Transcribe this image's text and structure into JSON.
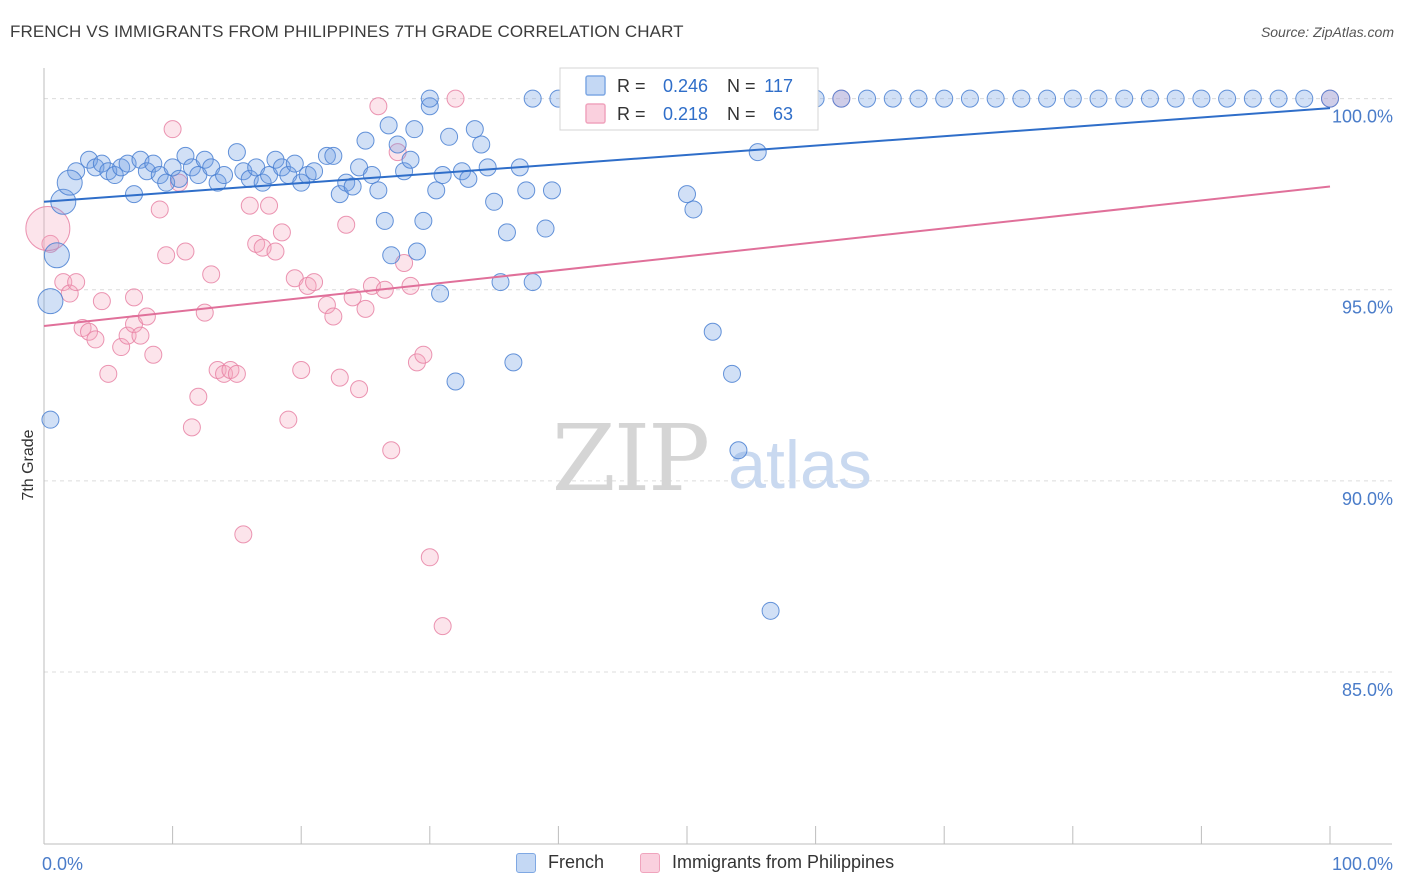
{
  "header": {
    "title": "FRENCH VS IMMIGRANTS FROM PHILIPPINES 7TH GRADE CORRELATION CHART",
    "source": "Source: ZipAtlas.com"
  },
  "watermark": {
    "zip": "ZIP",
    "atlas": "atlas"
  },
  "chart_data": {
    "type": "scatter",
    "title": "FRENCH VS IMMIGRANTS FROM PHILIPPINES 7TH GRADE CORRELATION CHART",
    "xlabel": "",
    "ylabel": "7th Grade",
    "xlim": [
      0,
      100
    ],
    "ylim": [
      80.5,
      100.8
    ],
    "x_tick_labels": [
      {
        "value": 0,
        "label": "0.0%"
      },
      {
        "value": 100,
        "label": "100.0%"
      }
    ],
    "y_ticks": [
      {
        "value": 100,
        "label": "100.0%"
      },
      {
        "value": 95,
        "label": "95.0%"
      },
      {
        "value": 90,
        "label": "90.0%"
      },
      {
        "value": 85,
        "label": "85.0%"
      }
    ],
    "grid": true,
    "legend_position": "top-center",
    "colors": {
      "french": "#6f9fe3",
      "french_line": "#2f6ec9",
      "philippines": "#f4a6bd",
      "philippines_line": "#e0709a",
      "stat_value": "#2f6ec9"
    },
    "legend": [
      {
        "series": "French",
        "r_label": "R =",
        "r_value": "0.246",
        "n_label": "N =",
        "n_value": "117"
      },
      {
        "series": "Immigrants from Philippines",
        "r_label": "R =",
        "r_value": "0.218",
        "n_label": "N =",
        "n_value": "63"
      }
    ],
    "series": [
      {
        "name": "French",
        "trend": [
          [
            0,
            97.3
          ],
          [
            100,
            99.75
          ]
        ],
        "points": [
          [
            2.5,
            98.1
          ],
          [
            3.5,
            98.4
          ],
          [
            4,
            98.2
          ],
          [
            4.5,
            98.3
          ],
          [
            5,
            98.1
          ],
          [
            5.5,
            98.0
          ],
          [
            6,
            98.2
          ],
          [
            6.5,
            98.3
          ],
          [
            7,
            97.5
          ],
          [
            7.5,
            98.4
          ],
          [
            8,
            98.1
          ],
          [
            8.5,
            98.3
          ],
          [
            9,
            98.0
          ],
          [
            9.5,
            97.8
          ],
          [
            10,
            98.2
          ],
          [
            10.5,
            97.9
          ],
          [
            11,
            98.5
          ],
          [
            11.5,
            98.2
          ],
          [
            12,
            98.0
          ],
          [
            12.5,
            98.4
          ],
          [
            13,
            98.2
          ],
          [
            13.5,
            97.8
          ],
          [
            14,
            98.0
          ],
          [
            15,
            98.6
          ],
          [
            15.5,
            98.1
          ],
          [
            16,
            97.9
          ],
          [
            16.5,
            98.2
          ],
          [
            17,
            97.8
          ],
          [
            17.5,
            98.0
          ],
          [
            18,
            98.4
          ],
          [
            18.5,
            98.2
          ],
          [
            19,
            98.0
          ],
          [
            19.5,
            98.3
          ],
          [
            20,
            97.8
          ],
          [
            20.5,
            98.0
          ],
          [
            21,
            98.1
          ],
          [
            22,
            98.5
          ],
          [
            22.5,
            98.5
          ],
          [
            23,
            97.5
          ],
          [
            23.5,
            97.8
          ],
          [
            24,
            97.7
          ],
          [
            24.5,
            98.2
          ],
          [
            25,
            98.9
          ],
          [
            25.5,
            98.0
          ],
          [
            26,
            97.6
          ],
          [
            26.5,
            96.8
          ],
          [
            27,
            95.9
          ],
          [
            26.8,
            99.3
          ],
          [
            27.5,
            98.8
          ],
          [
            28,
            98.1
          ],
          [
            28.5,
            98.4
          ],
          [
            28.8,
            99.2
          ],
          [
            29,
            96.0
          ],
          [
            29.5,
            96.8
          ],
          [
            30,
            99.8
          ],
          [
            30.5,
            97.6
          ],
          [
            30.8,
            94.9
          ],
          [
            31,
            98.0
          ],
          [
            31.5,
            99.0
          ],
          [
            32,
            92.6
          ],
          [
            32.5,
            98.1
          ],
          [
            33,
            97.9
          ],
          [
            33.5,
            99.2
          ],
          [
            34,
            98.8
          ],
          [
            34.5,
            98.2
          ],
          [
            35,
            97.3
          ],
          [
            35.5,
            95.2
          ],
          [
            36,
            96.5
          ],
          [
            37,
            98.2
          ],
          [
            36.5,
            93.1
          ],
          [
            37.5,
            97.6
          ],
          [
            38,
            95.2
          ],
          [
            39,
            96.6
          ],
          [
            39.5,
            97.6
          ],
          [
            50,
            97.5
          ],
          [
            50.5,
            97.1
          ],
          [
            52,
            93.9
          ],
          [
            53.5,
            92.8
          ],
          [
            56.5,
            86.6
          ],
          [
            54,
            90.8
          ],
          [
            55.5,
            98.6
          ],
          [
            30,
            100
          ],
          [
            38,
            100
          ],
          [
            40,
            100
          ],
          [
            42,
            100
          ],
          [
            44,
            100
          ],
          [
            46,
            100
          ],
          [
            48,
            100
          ],
          [
            50,
            100
          ],
          [
            52,
            100
          ],
          [
            54,
            100
          ],
          [
            56,
            100
          ],
          [
            58,
            100
          ],
          [
            60,
            100
          ],
          [
            62,
            100
          ],
          [
            64,
            100
          ],
          [
            66,
            100
          ],
          [
            68,
            100
          ],
          [
            70,
            100
          ],
          [
            72,
            100
          ],
          [
            74,
            100
          ],
          [
            76,
            100
          ],
          [
            78,
            100
          ],
          [
            80,
            100
          ],
          [
            82,
            100
          ],
          [
            84,
            100
          ],
          [
            86,
            100
          ],
          [
            88,
            100
          ],
          [
            90,
            100
          ],
          [
            92,
            100
          ],
          [
            94,
            100
          ],
          [
            96,
            100
          ],
          [
            98,
            100
          ],
          [
            100,
            100
          ],
          [
            0.5,
            91.6
          ]
        ],
        "large_points": [
          [
            1,
            95.9
          ],
          [
            1.5,
            97.3
          ],
          [
            0.5,
            94.7
          ],
          [
            2,
            97.8
          ]
        ]
      },
      {
        "name": "Immigrants from Philippines",
        "trend": [
          [
            0,
            94.05
          ],
          [
            100,
            97.7
          ]
        ],
        "points": [
          [
            0.5,
            96.2
          ],
          [
            1.5,
            95.2
          ],
          [
            2,
            94.9
          ],
          [
            2.5,
            95.2
          ],
          [
            3,
            94.0
          ],
          [
            3.5,
            93.9
          ],
          [
            4,
            93.7
          ],
          [
            4.5,
            94.7
          ],
          [
            5,
            92.8
          ],
          [
            6,
            93.5
          ],
          [
            6.5,
            93.8
          ],
          [
            7,
            94.1
          ],
          [
            7.5,
            93.8
          ],
          [
            8,
            94.3
          ],
          [
            8.5,
            93.3
          ],
          [
            9,
            97.1
          ],
          [
            9.5,
            95.9
          ],
          [
            10,
            99.2
          ],
          [
            10.5,
            97.8
          ],
          [
            11,
            96.0
          ],
          [
            11.5,
            91.4
          ],
          [
            12,
            92.2
          ],
          [
            12.5,
            94.4
          ],
          [
            13,
            95.4
          ],
          [
            13.5,
            92.9
          ],
          [
            14,
            92.8
          ],
          [
            14.5,
            92.9
          ],
          [
            15,
            92.8
          ],
          [
            15.5,
            88.6
          ],
          [
            16,
            97.2
          ],
          [
            16.5,
            96.2
          ],
          [
            17,
            96.1
          ],
          [
            17.5,
            97.2
          ],
          [
            18,
            96.0
          ],
          [
            18.5,
            96.5
          ],
          [
            19,
            91.6
          ],
          [
            19.5,
            95.3
          ],
          [
            20,
            92.9
          ],
          [
            20.5,
            95.1
          ],
          [
            21,
            95.2
          ],
          [
            22,
            94.6
          ],
          [
            22.5,
            94.3
          ],
          [
            23,
            92.7
          ],
          [
            23.5,
            96.7
          ],
          [
            24,
            94.8
          ],
          [
            24.5,
            92.4
          ],
          [
            25,
            94.5
          ],
          [
            25.5,
            95.1
          ],
          [
            26,
            99.8
          ],
          [
            26.5,
            95.0
          ],
          [
            27,
            90.8
          ],
          [
            27.5,
            98.6
          ],
          [
            28,
            95.7
          ],
          [
            28.5,
            95.1
          ],
          [
            29,
            93.1
          ],
          [
            29.5,
            93.3
          ],
          [
            30,
            88.0
          ],
          [
            31,
            86.2
          ],
          [
            44,
            100
          ],
          [
            32,
            100
          ],
          [
            62,
            100
          ],
          [
            100,
            100
          ],
          [
            7,
            94.8
          ]
        ],
        "large_points": [
          [
            0.3,
            96.6
          ]
        ]
      }
    ]
  },
  "legend_bottom": [
    {
      "label": "French"
    },
    {
      "label": "Immigrants from Philippines"
    }
  ]
}
